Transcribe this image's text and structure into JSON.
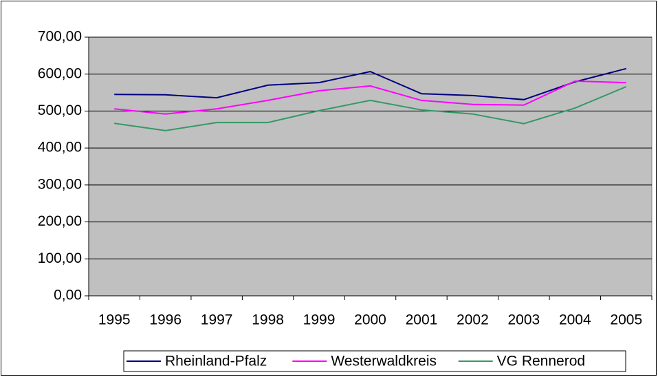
{
  "chart_data": {
    "type": "line",
    "categories": [
      "1995",
      "1996",
      "1997",
      "1998",
      "1999",
      "2000",
      "2001",
      "2002",
      "2003",
      "2004",
      "2005"
    ],
    "series": [
      {
        "name": "Rheinland-Pfalz",
        "color": "#000080",
        "values": [
          545,
          544,
          536,
          570,
          577,
          607,
          547,
          542,
          531,
          579,
          615
        ]
      },
      {
        "name": "Westerwaldkreis",
        "color": "#ff00ff",
        "values": [
          506,
          492,
          506,
          529,
          555,
          568,
          529,
          518,
          516,
          581,
          577
        ]
      },
      {
        "name": "VG Rennerod",
        "color": "#339966",
        "values": [
          467,
          447,
          469,
          469,
          501,
          529,
          503,
          492,
          466,
          508,
          566
        ]
      }
    ],
    "ylim": [
      0,
      700
    ],
    "yticks": [
      {
        "value": 0,
        "label": "0,00"
      },
      {
        "value": 100,
        "label": "100,00"
      },
      {
        "value": 200,
        "label": "200,00"
      },
      {
        "value": 300,
        "label": "300,00"
      },
      {
        "value": 400,
        "label": "400,00"
      },
      {
        "value": 500,
        "label": "500,00"
      },
      {
        "value": 600,
        "label": "600,00"
      },
      {
        "value": 700,
        "label": "700,00"
      }
    ],
    "grid": true,
    "plot_background": "#c0c0c0",
    "legend": "bottom"
  }
}
